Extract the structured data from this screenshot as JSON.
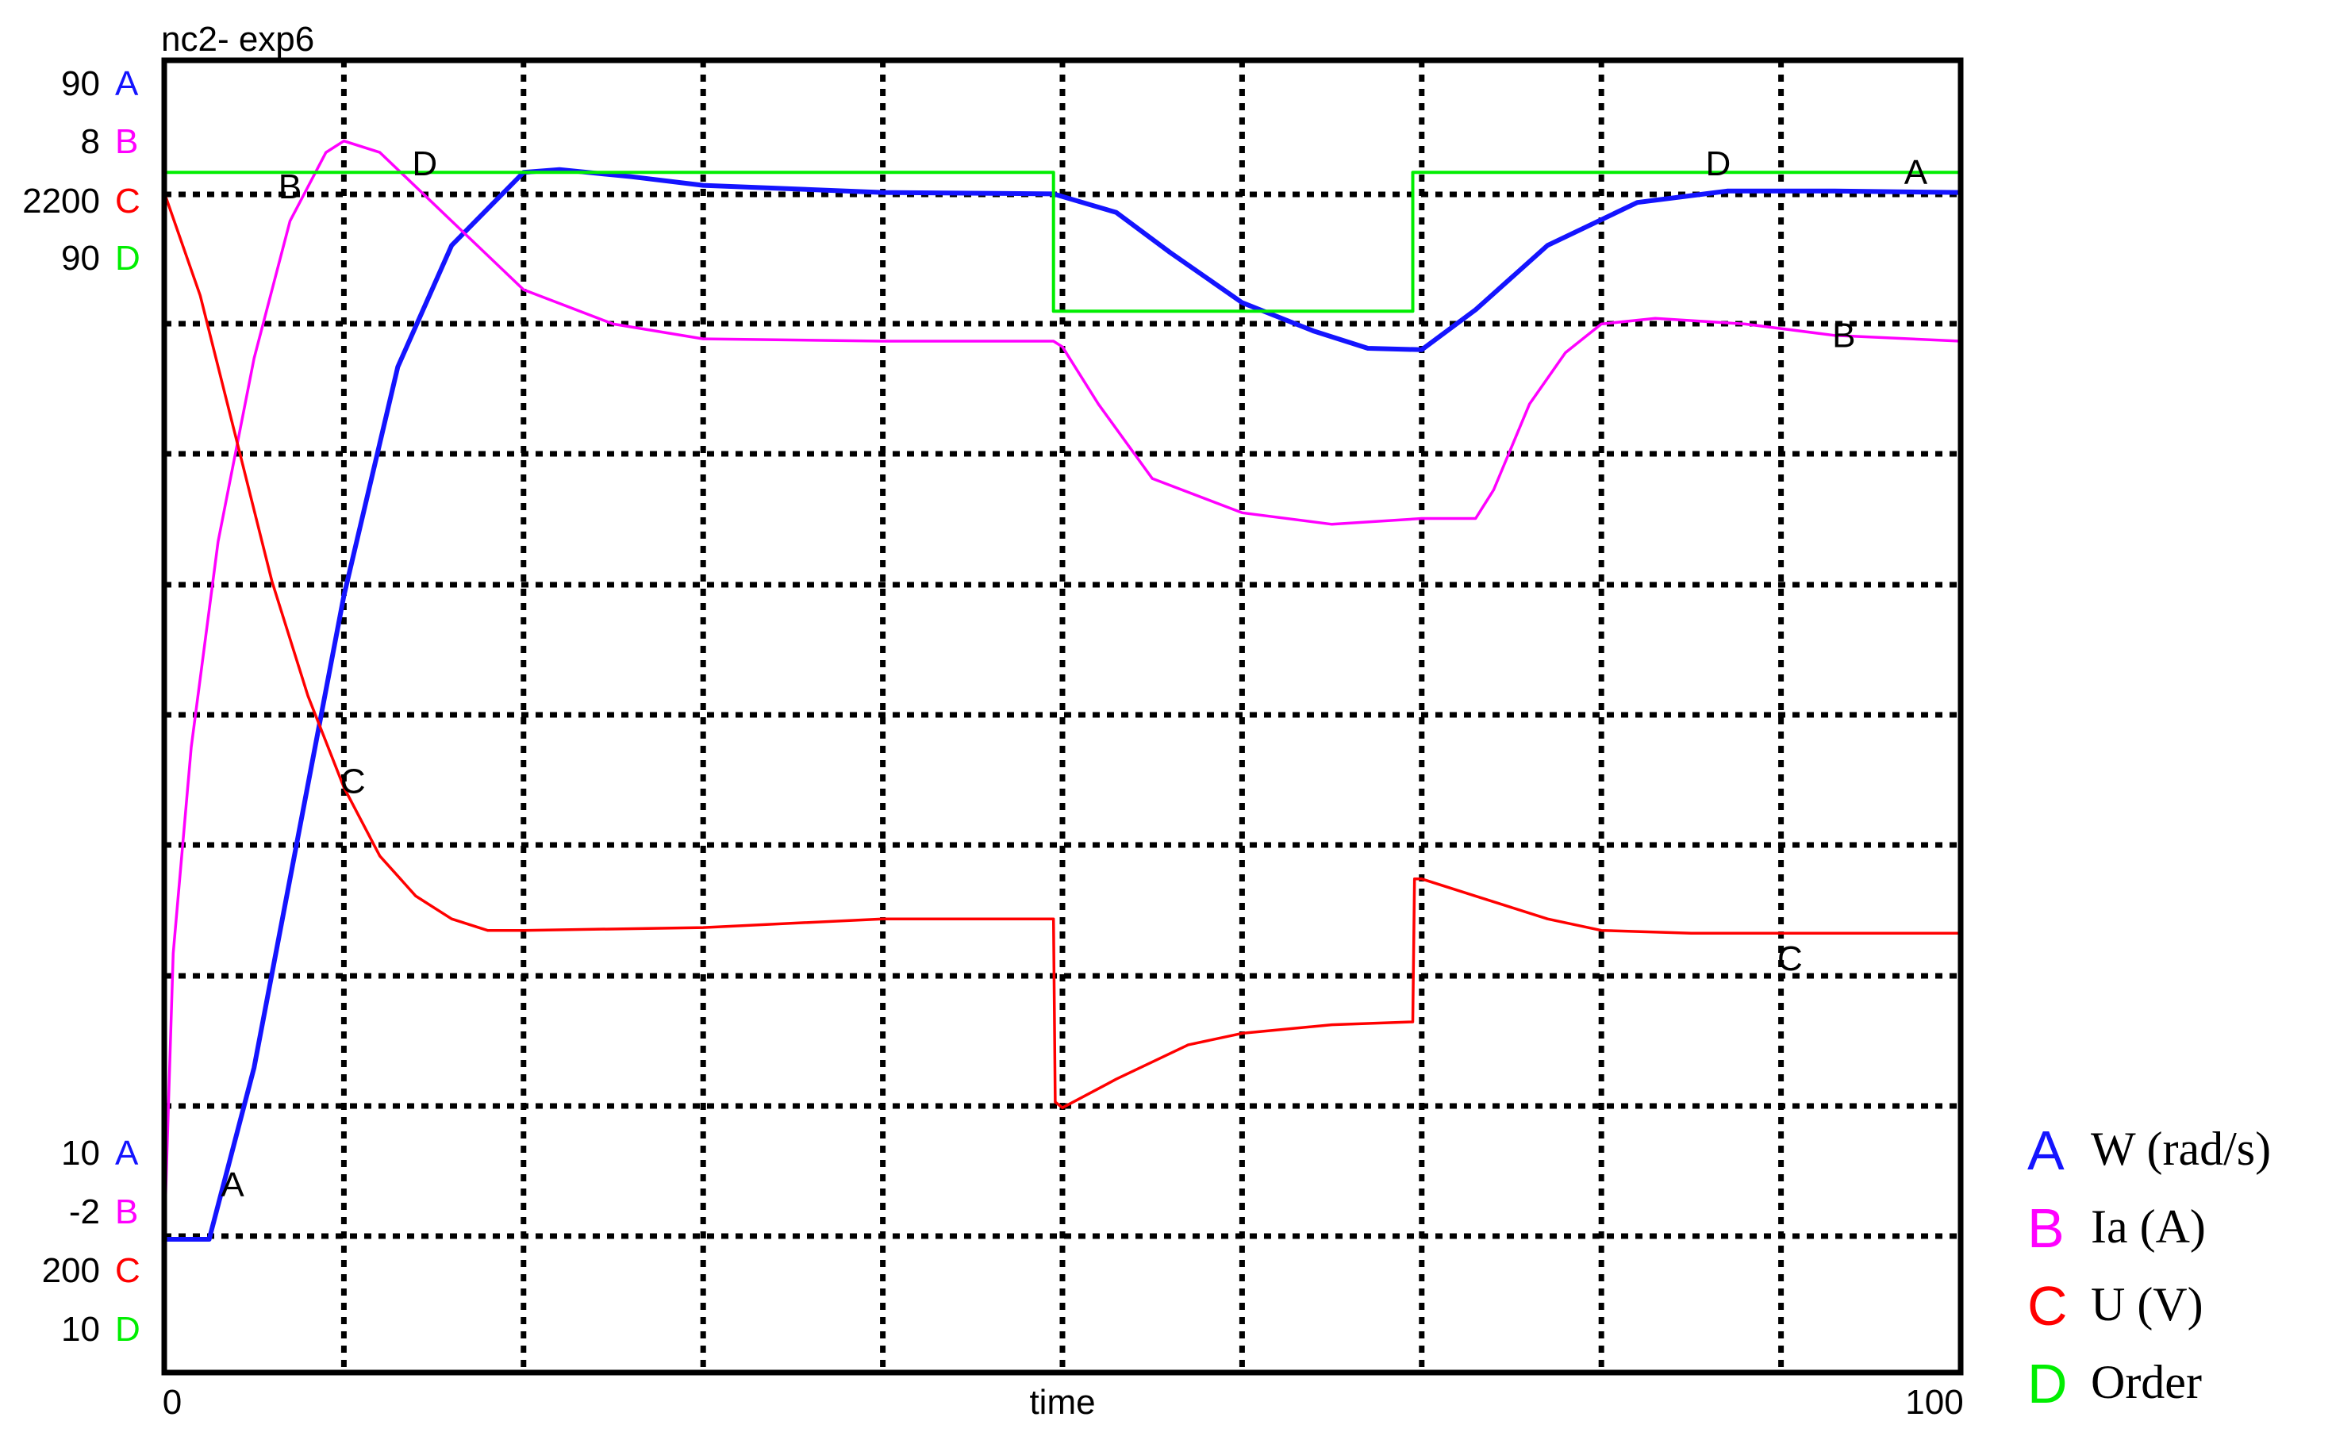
{
  "chart_data": {
    "type": "line",
    "title": "nc2- exp6",
    "xlabel": "time",
    "x_tick_labels": [
      "0",
      "100"
    ],
    "xlim": [
      0,
      100
    ],
    "grid": true,
    "grid_divisions": {
      "x": 10,
      "y": 10
    },
    "legend_position": "bottom-right",
    "series": [
      {
        "letter": "A",
        "name": "W (rad/s)",
        "color": "#1414ff",
        "ylim": [
          10,
          90
        ],
        "top_label": "90",
        "bottom_label": "10",
        "curve_labels": [
          {
            "text": "A",
            "x": 3.8,
            "y": 13.8
          },
          {
            "text": "A",
            "x": 97.5,
            "y": 84.6
          }
        ],
        "points": [
          [
            0,
            10
          ],
          [
            2.5,
            10
          ],
          [
            5,
            22
          ],
          [
            10,
            55
          ],
          [
            13,
            71
          ],
          [
            16,
            79.5
          ],
          [
            20,
            84.6
          ],
          [
            22,
            84.8
          ],
          [
            26,
            84.3
          ],
          [
            30,
            83.7
          ],
          [
            40,
            83.2
          ],
          [
            49.5,
            83.1
          ],
          [
            53,
            81.8
          ],
          [
            56,
            79
          ],
          [
            60,
            75.5
          ],
          [
            64,
            73.5
          ],
          [
            67,
            72.3
          ],
          [
            70,
            72.2
          ],
          [
            73,
            75
          ],
          [
            77,
            79.5
          ],
          [
            82,
            82.5
          ],
          [
            87,
            83.3
          ],
          [
            93,
            83.3
          ],
          [
            100,
            83.2
          ]
        ]
      },
      {
        "letter": "B",
        "name": "Ia (A)",
        "color": "#ff00ff",
        "ylim": [
          -2,
          8
        ],
        "top_label": "8",
        "bottom_label": "-2",
        "curve_labels": [
          {
            "text": "B",
            "x": 7,
            "y": 7.2
          },
          {
            "text": "B",
            "x": 93.5,
            "y": 5.9
          }
        ],
        "points": [
          [
            0,
            -2
          ],
          [
            0.5,
            0.5
          ],
          [
            1.5,
            2.3
          ],
          [
            3,
            4.1
          ],
          [
            5,
            5.7
          ],
          [
            7,
            6.9
          ],
          [
            9,
            7.5
          ],
          [
            10,
            7.6
          ],
          [
            12,
            7.5
          ],
          [
            16,
            6.9
          ],
          [
            20,
            6.3
          ],
          [
            25,
            6.0
          ],
          [
            30,
            5.87
          ],
          [
            40,
            5.85
          ],
          [
            49.5,
            5.85
          ],
          [
            50,
            5.8
          ],
          [
            52,
            5.3
          ],
          [
            55,
            4.65
          ],
          [
            60,
            4.35
          ],
          [
            65,
            4.25
          ],
          [
            70,
            4.3
          ],
          [
            73,
            4.3
          ],
          [
            74,
            4.55
          ],
          [
            76,
            5.3
          ],
          [
            78,
            5.75
          ],
          [
            80,
            6.0
          ],
          [
            83,
            6.05
          ],
          [
            88,
            6.0
          ],
          [
            93,
            5.9
          ],
          [
            100,
            5.85
          ]
        ]
      },
      {
        "letter": "C",
        "name": "U (V)",
        "color": "#ff0000",
        "ylim": [
          200,
          2200
        ],
        "top_label": "2200",
        "bottom_label": "200",
        "curve_labels": [
          {
            "text": "C",
            "x": 10.5,
            "y": 1000
          },
          {
            "text": "C",
            "x": 90.5,
            "y": 690
          }
        ],
        "points": [
          [
            0,
            2030
          ],
          [
            2,
            1850
          ],
          [
            4,
            1600
          ],
          [
            6,
            1350
          ],
          [
            8,
            1150
          ],
          [
            10,
            990
          ],
          [
            12,
            870
          ],
          [
            14,
            800
          ],
          [
            16,
            760
          ],
          [
            18,
            740
          ],
          [
            20,
            740
          ],
          [
            30,
            745
          ],
          [
            40,
            760
          ],
          [
            49.5,
            760
          ],
          [
            49.6,
            440
          ],
          [
            50,
            430
          ],
          [
            53,
            480
          ],
          [
            57,
            540
          ],
          [
            60,
            560
          ],
          [
            65,
            575
          ],
          [
            69.5,
            580
          ],
          [
            69.6,
            830
          ],
          [
            70,
            830
          ],
          [
            73,
            800
          ],
          [
            77,
            760
          ],
          [
            80,
            740
          ],
          [
            85,
            735
          ],
          [
            100,
            735
          ]
        ]
      },
      {
        "letter": "D",
        "name": "Order",
        "color": "#00ee00",
        "ylim": [
          10,
          90
        ],
        "top_label": "90",
        "bottom_label": "10",
        "curve_labels": [
          {
            "text": "D",
            "x": 14.5,
            "y": 85.2
          },
          {
            "text": "D",
            "x": 86.5,
            "y": 85.2
          }
        ],
        "points": [
          [
            0,
            84.6
          ],
          [
            49.5,
            84.6
          ],
          [
            49.5,
            74.9
          ],
          [
            69.5,
            74.9
          ],
          [
            69.5,
            84.6
          ],
          [
            100,
            84.6
          ]
        ]
      }
    ]
  }
}
